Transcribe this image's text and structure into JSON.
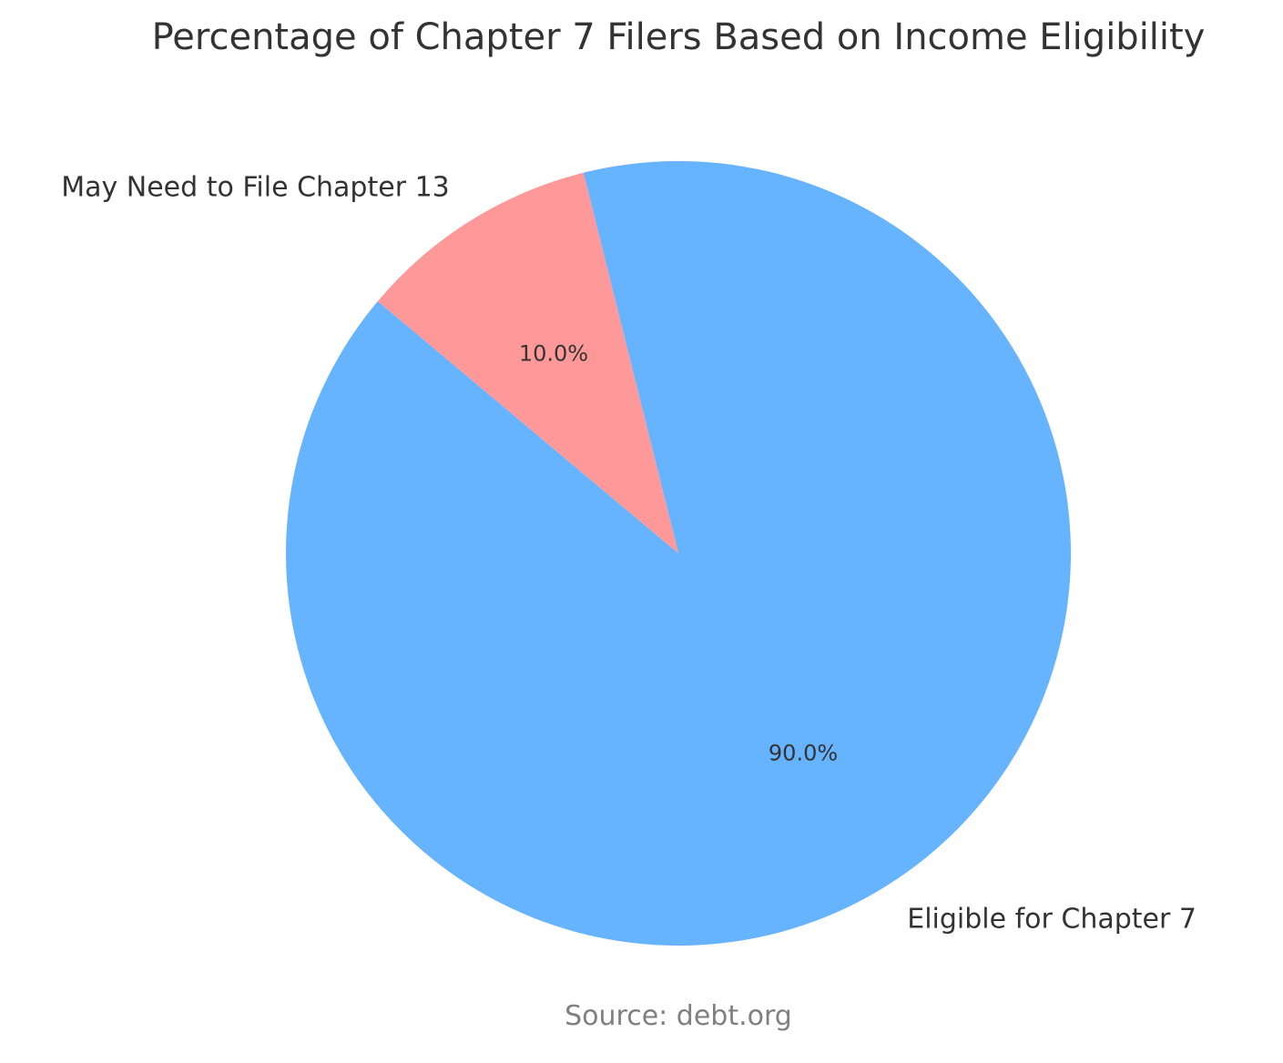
{
  "chart_data": {
    "type": "pie",
    "title": "Percentage of Chapter 7 Filers Based on Income Eligibility",
    "categories": [
      "Eligible for Chapter 7",
      "May Need to File Chapter 13"
    ],
    "values": [
      90.0,
      10.0
    ],
    "value_labels": [
      "90.0%",
      "10.0%"
    ],
    "colors": [
      "#66b3ff",
      "#ff9999"
    ],
    "legend": "none",
    "annotations": [
      "Source: debt.org"
    ]
  }
}
